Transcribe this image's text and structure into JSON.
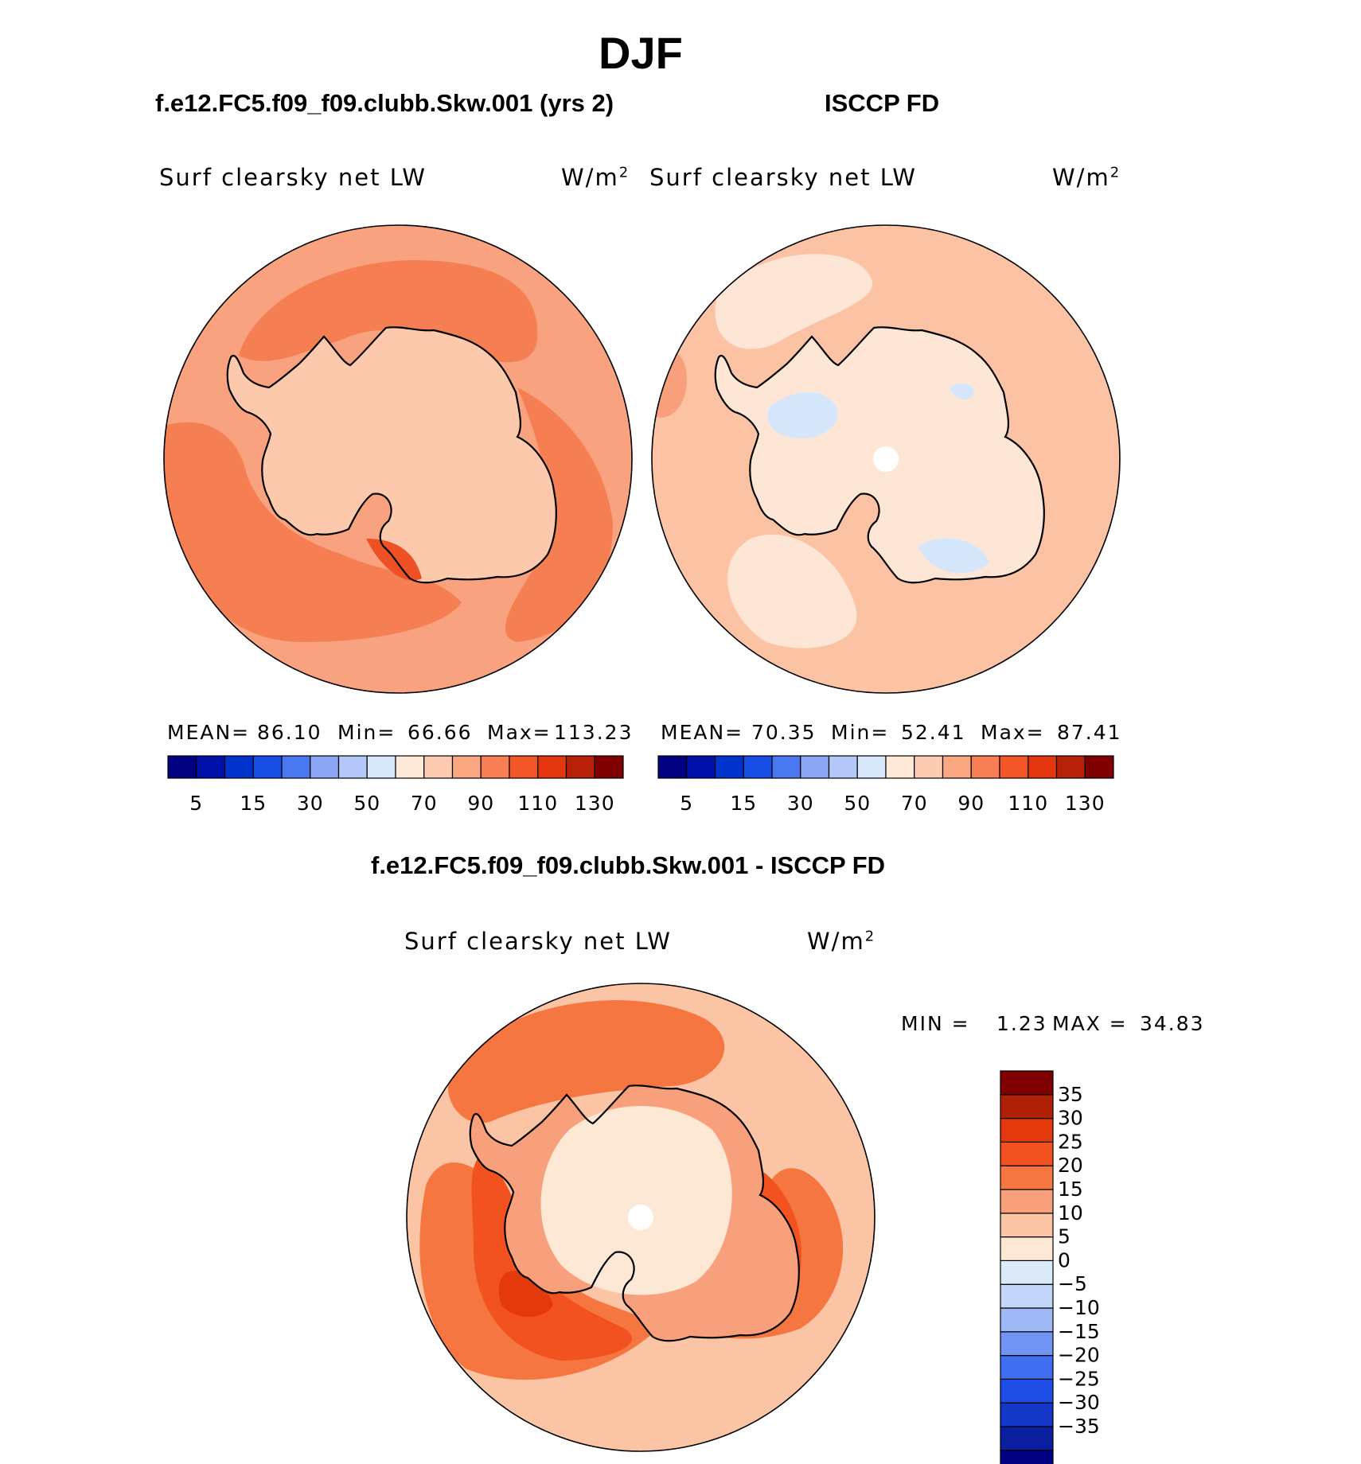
{
  "main_title": "DJF",
  "panels": {
    "model": {
      "header": "f.e12.FC5.f09_f09.clubb.Skw.001 (yrs 2)",
      "variable": "Surf  clearsky  net  LW",
      "units": "W/m",
      "units_sup": "2",
      "stats": {
        "mean_label": "MEAN=",
        "mean": "86.10",
        "min_label": "Min=",
        "min": "66.66",
        "max_label": "Max=",
        "max": "113.23"
      }
    },
    "obs": {
      "header": "ISCCP FD",
      "variable": "Surf  clearsky  net  LW",
      "units": "W/m",
      "units_sup": "2",
      "stats": {
        "mean_label": "MEAN=",
        "mean": "70.35",
        "min_label": "Min=",
        "min": "52.41",
        "max_label": "Max=",
        "max": "87.41"
      }
    },
    "diff": {
      "header": "f.e12.FC5.f09_f09.clubb.Skw.001 - ISCCP FD",
      "variable": "Surf  clearsky  net  LW",
      "units": "W/m",
      "units_sup": "2",
      "stats": {
        "min_label": "MIN =",
        "min": "1.23",
        "max_label": "MAX =",
        "max": "34.83"
      }
    }
  },
  "colorbar_abs": {
    "colors": [
      "#000080",
      "#0011aa",
      "#0033cc",
      "#1a4fe6",
      "#4a78f0",
      "#8aa6f5",
      "#b5c8fa",
      "#d9e8fb",
      "#fee9d9",
      "#fccbb0",
      "#fba882",
      "#f87e53",
      "#f35627",
      "#e3350e",
      "#b72108",
      "#7e0000"
    ],
    "tick_labels": [
      "5",
      "15",
      "30",
      "50",
      "70",
      "90",
      "110",
      "130"
    ]
  },
  "colorbar_diff": {
    "colors": [
      "#000080",
      "#0a1ea0",
      "#1537c8",
      "#1f4ee6",
      "#3f6ef0",
      "#6f94f4",
      "#9fb9f7",
      "#c3d6fa",
      "#dbeafb",
      "#fde8d6",
      "#fbc4a4",
      "#f8a07c",
      "#f57640",
      "#f2521f",
      "#e3390c",
      "#b02005",
      "#800000"
    ],
    "tick_labels": [
      "35",
      "30",
      "25",
      "20",
      "15",
      "10",
      "5",
      "0",
      "−5",
      "−10",
      "−15",
      "−20",
      "−25",
      "−30",
      "−35"
    ]
  },
  "map_colors": {
    "model_ocean": "#f9a27f",
    "model_band": "#f57f52",
    "model_ice": "#fcc9ac",
    "model_hot": "#ef5126",
    "obs_ocean": "#fbc2a4",
    "obs_light": "#fde6d5",
    "obs_blue": "#d5e6fb",
    "obs_pink": "#f8a07c",
    "diff_ocean": "#fbc4a4",
    "diff_band": "#f57640",
    "diff_hot": "#f2521f",
    "diff_dark": "#e3390c",
    "diff_ice": "#fde8d6",
    "diff_ice2": "#f8a07c",
    "coast": "#000000"
  }
}
